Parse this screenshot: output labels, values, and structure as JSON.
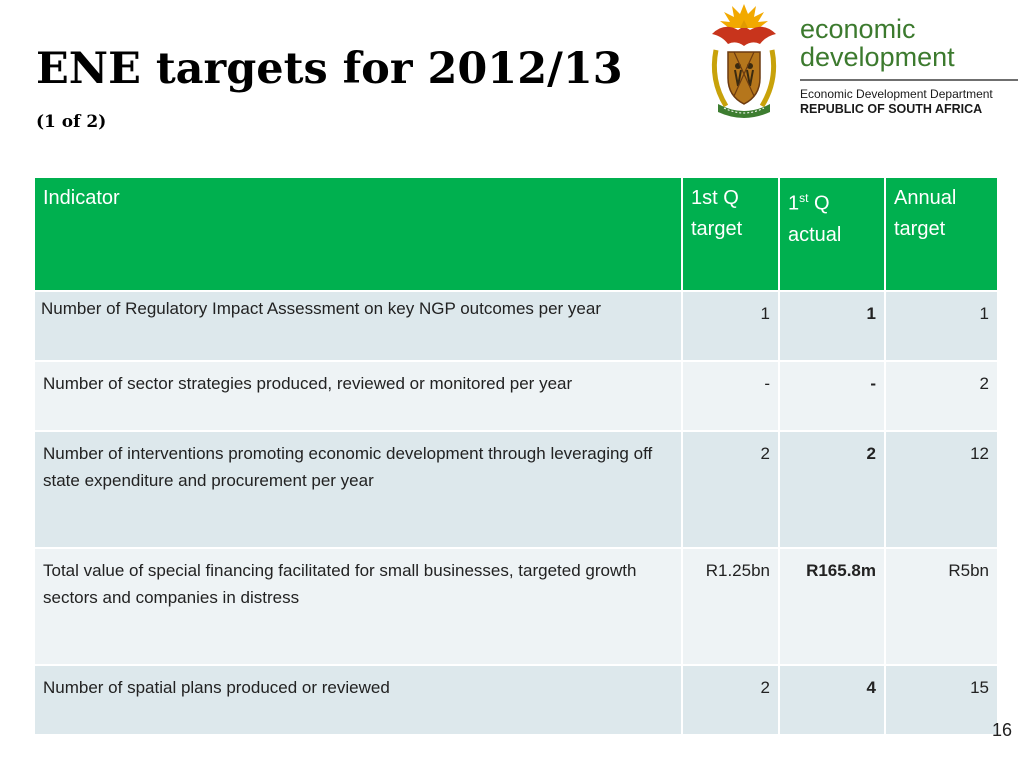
{
  "slide": {
    "title": "ENE targets for 2012/13",
    "subtitle": "(1 of 2)",
    "page_number": "16"
  },
  "logo": {
    "line1": "economic",
    "line2": "development",
    "department": "Economic Development Department",
    "country": "REPUBLIC OF SOUTH AFRICA",
    "brand_color": "#3c7a2e",
    "icon": "coat-of-arms-icon"
  },
  "table": {
    "header": {
      "indicator": "Indicator",
      "q1_target_line1": "1st Q",
      "q1_target_line2": "target",
      "q1_actual_base": "1",
      "q1_actual_sup": "st",
      "q1_actual_rest": " Q",
      "q1_actual_line2": "actual",
      "annual_line1": "Annual",
      "annual_line2": "target"
    },
    "rows": [
      {
        "indicator": "Number of Regulatory Impact Assessment on key NGP outcomes per year",
        "q1_target": "1",
        "q1_actual": "1",
        "annual": "1"
      },
      {
        "indicator": "Number of sector strategies produced, reviewed or monitored per year",
        "q1_target": "-",
        "q1_actual": "-",
        "annual": "2"
      },
      {
        "indicator": "Number of interventions promoting economic development through leveraging  off state expenditure and procurement per year",
        "q1_target": "2",
        "q1_actual": "2",
        "annual": "12"
      },
      {
        "indicator": "Total value of special financing facilitated for small businesses, targeted growth sectors and companies in distress",
        "q1_target": "R1.25bn",
        "q1_actual": "R165.8m",
        "annual": "R5bn"
      },
      {
        "indicator": "Number of spatial plans produced or reviewed",
        "q1_target": "2",
        "q1_actual": "4",
        "annual": "15"
      }
    ],
    "colors": {
      "header": "#00b04f",
      "row_odd": "#dde8ec",
      "row_even": "#eef3f5"
    }
  }
}
